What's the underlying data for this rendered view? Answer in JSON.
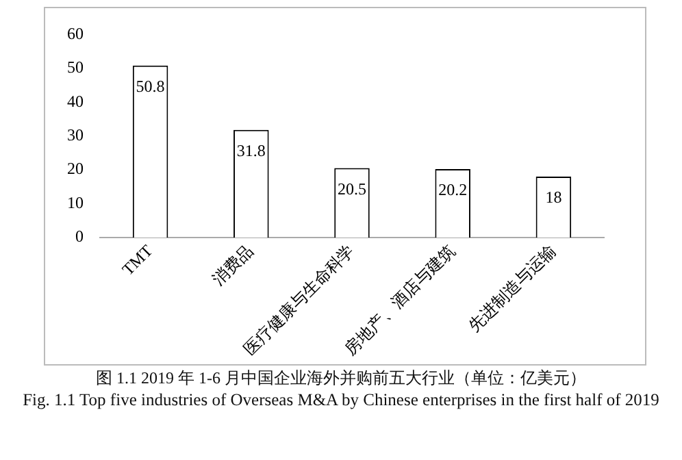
{
  "chart_data": {
    "type": "bar",
    "title": "图 1.1 2019 年 1-6 月中国企业海外并购前五大行业（单位：亿美元）",
    "subtitle": "Fig. 1.1 Top five industries of Overseas M&A by Chinese enterprises in the first half of 2019",
    "categories": [
      "TMT",
      "消费品",
      "医疗健康与生命科学",
      "房地产、酒店与建筑",
      "先进制造与运输"
    ],
    "values": [
      50.8,
      31.8,
      20.5,
      20.2,
      18
    ],
    "color": "#ffffff",
    "ylim": [
      0,
      60
    ],
    "yticks": [
      0,
      10,
      20,
      30,
      40,
      50,
      60
    ],
    "grid": false,
    "legend": false,
    "data_labels": true
  }
}
